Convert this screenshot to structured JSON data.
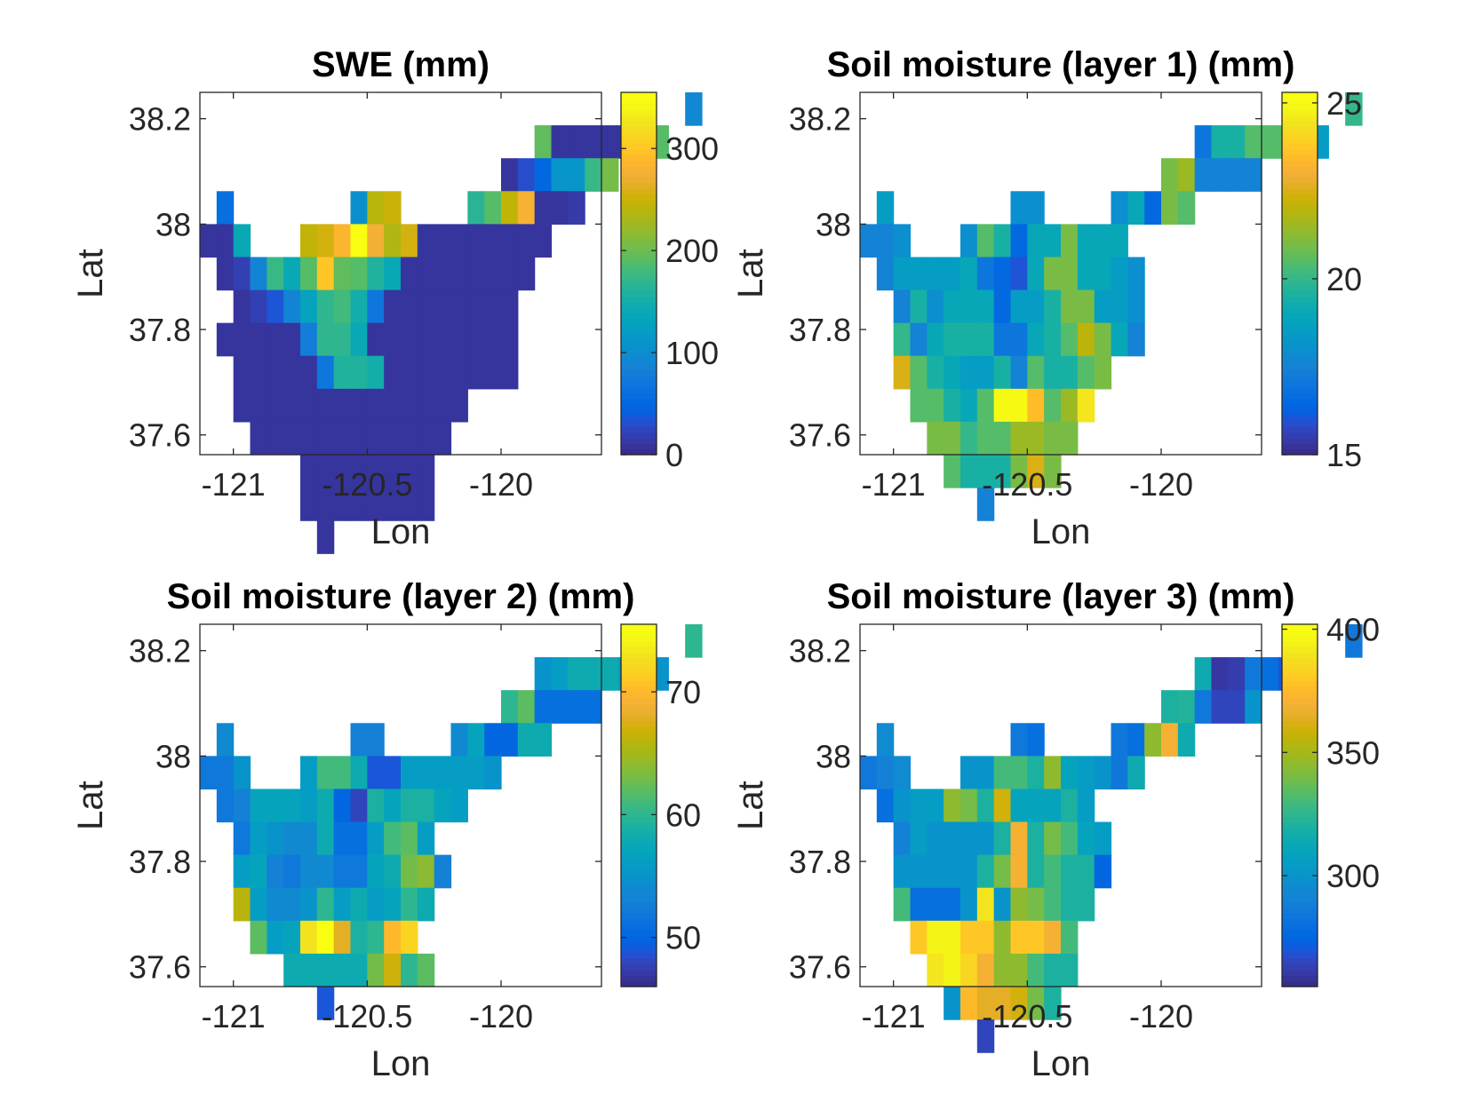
{
  "chart_data": [
    {
      "type": "heatmap",
      "title": "SWE (mm)",
      "xlabel": "Lon",
      "ylabel": "Lat",
      "xlim": [
        -121.125,
        -119.625
      ],
      "ylim": [
        37.5625,
        38.25
      ],
      "xticks": [
        -121,
        -120.5,
        -120
      ],
      "xtick_labels": [
        "-121",
        "-120.5",
        "-120"
      ],
      "yticks": [
        37.6,
        37.8,
        38,
        38.2
      ],
      "ytick_labels": [
        "37.6",
        "37.8",
        "38",
        "38.2"
      ],
      "clim": [
        0,
        355
      ],
      "cticks": [
        0,
        100,
        200,
        300
      ],
      "ctick_labels": [
        "0",
        "100",
        "200",
        "300"
      ],
      "colormap": "parula",
      "grid": false,
      "cell_size_deg": 0.0625,
      "origin": {
        "lon": -121.125,
        "lat": 38.25
      },
      "rows": [
        {
          "col0": 29,
          "values": [
            95
          ]
        },
        {
          "col0": 20,
          "values": [
            195,
            10,
            10,
            10,
            10,
            10,
            150,
            190
          ]
        },
        {
          "col0": 18,
          "values": [
            10,
            30,
            50,
            110,
            110,
            175,
            205
          ]
        },
        {
          "col0": 1,
          "values": [
            60,
            null,
            null,
            null,
            null,
            null,
            null,
            null,
            105,
            240,
            250,
            null,
            null,
            null,
            null,
            165,
            190,
            245,
            280,
            10,
            10,
            15
          ]
        },
        {
          "col0": 0,
          "values": [
            10,
            10,
            140,
            null,
            null,
            null,
            245,
            255,
            285,
            350,
            275,
            235,
            255,
            10,
            10,
            10,
            10,
            10,
            10,
            10,
            10
          ]
        },
        {
          "col0": 1,
          "values": [
            10,
            20,
            90,
            175,
            140,
            190,
            300,
            195,
            190,
            160,
            140,
            10,
            10,
            10,
            10,
            10,
            10,
            10,
            10
          ]
        },
        {
          "col0": 2,
          "values": [
            10,
            20,
            35,
            90,
            130,
            170,
            180,
            150,
            70,
            10,
            10,
            10,
            10,
            10,
            10,
            10,
            10
          ]
        },
        {
          "col0": 1,
          "values": [
            10,
            10,
            10,
            10,
            10,
            80,
            170,
            170,
            140,
            10,
            10,
            10,
            10,
            10,
            10,
            10,
            10,
            10
          ]
        },
        {
          "col0": 2,
          "values": [
            10,
            10,
            10,
            10,
            10,
            70,
            160,
            160,
            150,
            10,
            10,
            10,
            10,
            10,
            10,
            10,
            10
          ]
        },
        {
          "col0": 2,
          "values": [
            10,
            10,
            10,
            10,
            10,
            10,
            10,
            10,
            10,
            10,
            10,
            10,
            10,
            10
          ]
        },
        {
          "col0": 3,
          "values": [
            10,
            10,
            10,
            10,
            10,
            10,
            10,
            10,
            10,
            10,
            10,
            10
          ]
        },
        {
          "col0": 6,
          "values": [
            10,
            10,
            10,
            10,
            10,
            10,
            10,
            10
          ]
        },
        {
          "col0": 6,
          "values": [
            10,
            10,
            10,
            10,
            10,
            10,
            10,
            10
          ]
        },
        {
          "col0": 7,
          "values": [
            10
          ]
        }
      ]
    },
    {
      "type": "heatmap",
      "title": "Soil moisture (layer 1) (mm)",
      "xlabel": "Lon",
      "ylabel": "Lat",
      "xlim": [
        -121.125,
        -119.625
      ],
      "ylim": [
        37.5625,
        38.25
      ],
      "xticks": [
        -121,
        -120.5,
        -120
      ],
      "xtick_labels": [
        "-121",
        "-120.5",
        "-120"
      ],
      "yticks": [
        37.6,
        37.8,
        38,
        38.2
      ],
      "ytick_labels": [
        "37.6",
        "37.8",
        "38",
        "38.2"
      ],
      "clim": [
        15,
        25.3
      ],
      "cticks": [
        15,
        20,
        25
      ],
      "ctick_labels": [
        "15",
        "20",
        "25"
      ],
      "colormap": "parula",
      "grid": false,
      "cell_size_deg": 0.0625,
      "origin": {
        "lon": -121.125,
        "lat": 38.25
      },
      "rows": [
        {
          "col0": 29,
          "values": [
            20
          ]
        },
        {
          "col0": 20,
          "values": [
            17,
            19.5,
            19.5,
            20.5,
            20.5,
            20.5,
            19.5,
            18.5
          ]
        },
        {
          "col0": 18,
          "values": [
            21,
            21.5,
            17.5,
            17.5,
            17.5,
            17.5
          ]
        },
        {
          "col0": 1,
          "values": [
            18.5,
            null,
            null,
            null,
            null,
            null,
            null,
            null,
            18,
            18,
            null,
            null,
            null,
            null,
            18,
            19,
            16.5,
            21,
            20.5
          ]
        },
        {
          "col0": 0,
          "values": [
            17.5,
            17.5,
            18,
            null,
            null,
            null,
            18,
            20.5,
            19.5,
            16.5,
            19,
            19,
            21,
            19,
            19,
            19
          ]
        },
        {
          "col0": 1,
          "values": [
            17.5,
            18.5,
            18.5,
            18.5,
            18.5,
            19,
            17,
            16.5,
            16,
            19,
            21,
            21,
            19,
            19,
            18.5,
            18
          ]
        },
        {
          "col0": 2,
          "values": [
            17.5,
            19.5,
            18,
            19,
            19,
            19,
            16.5,
            18.5,
            18.5,
            19.5,
            21,
            21,
            18.5,
            18.5,
            18
          ]
        },
        {
          "col0": 2,
          "values": [
            20,
            17.5,
            19,
            19.5,
            19.5,
            19.5,
            17,
            17,
            19,
            19.5,
            20.5,
            22,
            21,
            19,
            17.5
          ]
        },
        {
          "col0": 2,
          "values": [
            22.5,
            20.5,
            19.5,
            19,
            18.5,
            18.5,
            19.5,
            17.5,
            20.5,
            19.5,
            19.5,
            20.5,
            21
          ]
        },
        {
          "col0": 3,
          "values": [
            20.5,
            20.5,
            19.5,
            19,
            20.5,
            25,
            25,
            23.5,
            20.5,
            21.5,
            24.5
          ]
        },
        {
          "col0": 4,
          "values": [
            21,
            21,
            20,
            20.5,
            20.5,
            21.5,
            21.5,
            21,
            21
          ]
        },
        {
          "col0": 5,
          "values": [
            20.5,
            19.5,
            19.5,
            19.5,
            21,
            22.5,
            21
          ]
        },
        {
          "col0": 7,
          "values": [
            17.5
          ]
        }
      ]
    },
    {
      "type": "heatmap",
      "title": "Soil moisture (layer 2) (mm)",
      "xlabel": "Lon",
      "ylabel": "Lat",
      "xlim": [
        -121.125,
        -119.625
      ],
      "ylim": [
        37.5625,
        38.25
      ],
      "xticks": [
        -121,
        -120.5,
        -120
      ],
      "xtick_labels": [
        "-121",
        "-120.5",
        "-120"
      ],
      "yticks": [
        37.6,
        37.8,
        38,
        38.2
      ],
      "ytick_labels": [
        "37.6",
        "37.8",
        "38",
        "38.2"
      ],
      "clim": [
        46,
        75.5
      ],
      "cticks": [
        50,
        60,
        70
      ],
      "ctick_labels": [
        "50",
        "60",
        "70"
      ],
      "colormap": "parula",
      "grid": false,
      "cell_size_deg": 0.0625,
      "origin": {
        "lon": -121.125,
        "lat": 38.25
      },
      "rows": [
        {
          "col0": 29,
          "values": [
            60
          ]
        },
        {
          "col0": 20,
          "values": [
            55,
            56,
            58,
            58,
            58,
            56,
            55,
            55
          ]
        },
        {
          "col0": 18,
          "values": [
            60,
            62,
            51,
            51,
            51,
            51
          ]
        },
        {
          "col0": 1,
          "values": [
            54,
            null,
            null,
            null,
            null,
            null,
            null,
            null,
            53,
            53,
            null,
            null,
            null,
            null,
            54,
            57,
            50,
            50,
            58,
            58
          ]
        },
        {
          "col0": 0,
          "values": [
            52,
            52,
            55,
            null,
            null,
            null,
            56,
            61,
            61,
            58,
            49,
            49,
            56,
            56,
            56,
            56,
            56,
            55
          ]
        },
        {
          "col0": 1,
          "values": [
            52,
            53,
            57,
            57,
            57,
            56,
            58,
            50,
            48,
            59,
            57,
            59,
            59,
            57,
            56
          ]
        },
        {
          "col0": 2,
          "values": [
            52,
            56,
            55,
            54,
            54,
            58,
            51,
            51,
            56,
            61,
            62,
            56
          ]
        },
        {
          "col0": 2,
          "values": [
            56,
            57,
            53,
            52,
            54,
            54,
            52,
            52,
            57,
            58,
            63,
            64,
            53
          ]
        },
        {
          "col0": 2,
          "values": [
            66,
            56,
            54,
            54,
            55,
            60,
            56,
            58,
            56,
            57,
            60,
            58
          ]
        },
        {
          "col0": 3,
          "values": [
            62,
            56,
            57,
            73,
            75,
            68,
            59,
            60,
            70,
            72
          ]
        },
        {
          "col0": 5,
          "values": [
            58,
            58,
            58,
            58,
            58,
            63,
            67,
            60,
            62
          ]
        },
        {
          "col0": 7,
          "values": [
            49
          ]
        }
      ]
    },
    {
      "type": "heatmap",
      "title": "Soil moisture (layer 3) (mm)",
      "xlabel": "Lon",
      "ylabel": "Lat",
      "xlim": [
        -121.125,
        -119.625
      ],
      "ylim": [
        37.5625,
        38.25
      ],
      "xticks": [
        -121,
        -120.5,
        -120
      ],
      "xtick_labels": [
        "-121",
        "-120.5",
        "-120"
      ],
      "yticks": [
        37.6,
        37.8,
        38,
        38.2
      ],
      "ytick_labels": [
        "37.6",
        "37.8",
        "38",
        "38.2"
      ],
      "clim": [
        255,
        402
      ],
      "cticks": [
        300,
        350,
        400
      ],
      "ctick_labels": [
        "300",
        "350",
        "400"
      ],
      "colormap": "parula",
      "grid": false,
      "cell_size_deg": 0.0625,
      "origin": {
        "lon": -121.125,
        "lat": 38.25
      },
      "rows": [
        {
          "col0": 29,
          "values": [
            285
          ]
        },
        {
          "col0": 20,
          "values": [
            315,
            260,
            262,
            285,
            280,
            270,
            260
          ]
        },
        {
          "col0": 18,
          "values": [
            320,
            322,
            285,
            265,
            265,
            300
          ]
        },
        {
          "col0": 1,
          "values": [
            295,
            null,
            null,
            null,
            null,
            null,
            null,
            null,
            285,
            280,
            null,
            null,
            null,
            null,
            285,
            280,
            345,
            370,
            315
          ]
        },
        {
          "col0": 0,
          "values": [
            285,
            290,
            295,
            null,
            null,
            null,
            300,
            300,
            330,
            330,
            320,
            345,
            310,
            305,
            300,
            285,
            315
          ]
        },
        {
          "col0": 1,
          "values": [
            280,
            300,
            305,
            305,
            345,
            340,
            320,
            360,
            310,
            310,
            310,
            320,
            305
          ]
        },
        {
          "col0": 2,
          "values": [
            290,
            305,
            300,
            300,
            300,
            300,
            320,
            370,
            320,
            340,
            330,
            310,
            305
          ]
        },
        {
          "col0": 2,
          "values": [
            300,
            300,
            300,
            300,
            300,
            320,
            340,
            370,
            320,
            330,
            320,
            320,
            275
          ]
        },
        {
          "col0": 2,
          "values": [
            330,
            280,
            280,
            280,
            300,
            390,
            300,
            345,
            340,
            330,
            320,
            320
          ]
        },
        {
          "col0": 3,
          "values": [
            380,
            395,
            395,
            380,
            380,
            345,
            380,
            380,
            370,
            330
          ]
        },
        {
          "col0": 4,
          "values": [
            390,
            395,
            385,
            370,
            345,
            345,
            330,
            320,
            320
          ]
        },
        {
          "col0": 5,
          "values": [
            300,
            375,
            365,
            365,
            360,
            340,
            320
          ]
        },
        {
          "col0": 7,
          "values": [
            265
          ]
        }
      ]
    }
  ]
}
